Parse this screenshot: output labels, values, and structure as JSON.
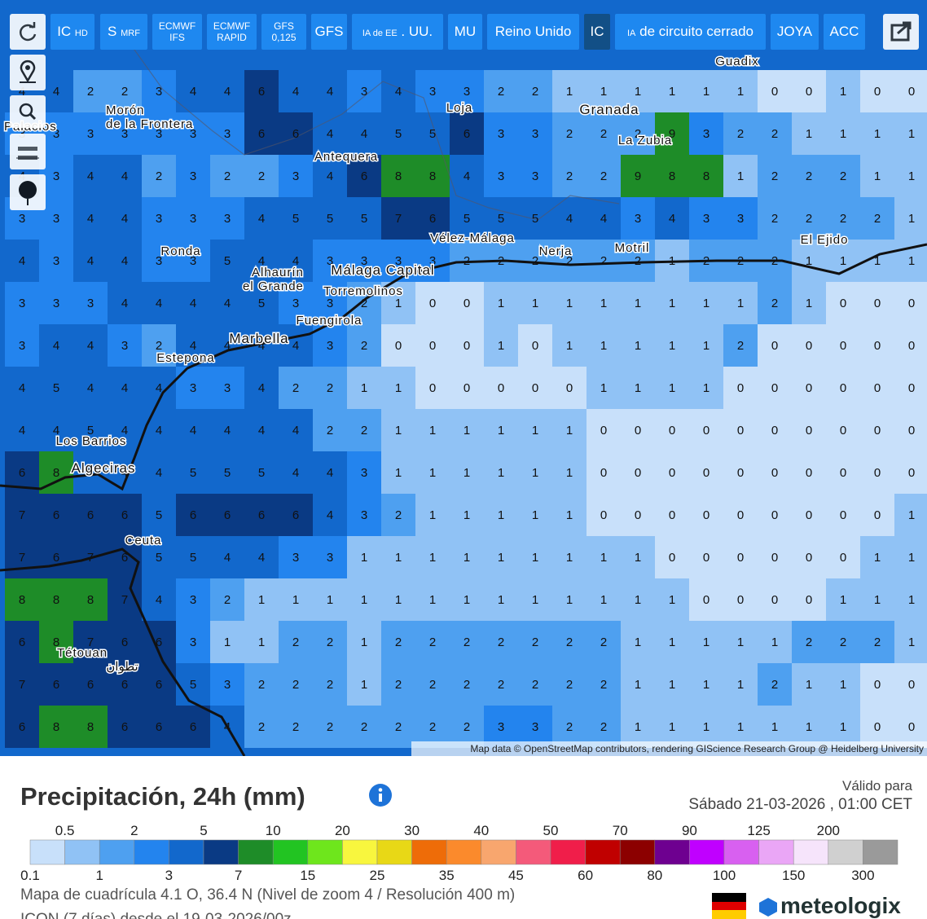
{
  "buttons": [
    {
      "label": "IC",
      "sub": "HD"
    },
    {
      "label": "S",
      "sub": "MRF"
    },
    {
      "line1": "ECMWF",
      "line2": "IFS"
    },
    {
      "line1": "ECMWF",
      "line2": "RAPID"
    },
    {
      "line1": "GFS",
      "line2": "0,125"
    },
    {
      "label": "GFS"
    },
    {
      "pre": "IA de EE",
      "label": ". UU."
    },
    {
      "label": "MU"
    },
    {
      "label": "Reino Unido"
    },
    {
      "label": "IC"
    },
    {
      "pre": "IA",
      "label": "de circuito cerrado"
    },
    {
      "label": "JOYA"
    },
    {
      "label": "ACC"
    }
  ],
  "map": {
    "attribution": "Map data © OpenStreetMap contributors, rendering GIScience Research Group @ Heidelberg University",
    "places": [
      "Guadix",
      "Granada",
      "La Zubia",
      "Loja",
      "Morón",
      "de la Frontera",
      "Palacios",
      "Antequera",
      "Ronda",
      "Vélez-Málaga",
      "Nerja",
      "Motril",
      "El Ejido",
      "Alhaurín",
      "el Grande",
      "Málaga Capital",
      "Torremolinos",
      "Fuengirola",
      "Marbella",
      "Estepona",
      "Los Barrios",
      "Algeciras",
      "Ceuta",
      "Tétouan",
      "تطوان"
    ],
    "grid": {
      "rows": [
        [
          4,
          4,
          2,
          2,
          3,
          4,
          4,
          6,
          4,
          4,
          3,
          4,
          3,
          3,
          2,
          2,
          1,
          1,
          1,
          1,
          1,
          1,
          0,
          0,
          1,
          0,
          0
        ],
        [
          3,
          3,
          3,
          3,
          3,
          3,
          3,
          6,
          6,
          4,
          4,
          5,
          5,
          6,
          3,
          3,
          2,
          2,
          2,
          9,
          3,
          2,
          2,
          1,
          1,
          1,
          1
        ],
        [
          4,
          3,
          4,
          4,
          2,
          3,
          2,
          2,
          3,
          4,
          6,
          8,
          8,
          4,
          3,
          3,
          2,
          2,
          9,
          8,
          8,
          1,
          2,
          2,
          2,
          1,
          1
        ],
        [
          3,
          3,
          4,
          4,
          3,
          3,
          3,
          4,
          5,
          5,
          5,
          7,
          6,
          5,
          5,
          5,
          4,
          4,
          3,
          4,
          3,
          3,
          2,
          2,
          2,
          2,
          1
        ],
        [
          4,
          3,
          4,
          4,
          3,
          3,
          5,
          4,
          4,
          3,
          3,
          3,
          3,
          2,
          2,
          2,
          2,
          2,
          2,
          1,
          2,
          2,
          2,
          1,
          1,
          1,
          1
        ],
        [
          3,
          3,
          3,
          4,
          4,
          4,
          4,
          5,
          3,
          3,
          2,
          1,
          0,
          0,
          1,
          1,
          1,
          1,
          1,
          1,
          1,
          1,
          2,
          1,
          0,
          0,
          0
        ],
        [
          3,
          4,
          4,
          3,
          2,
          4,
          4,
          4,
          4,
          3,
          2,
          0,
          0,
          0,
          1,
          0,
          1,
          1,
          1,
          1,
          1,
          2,
          0,
          0,
          0,
          0,
          0
        ],
        [
          4,
          5,
          4,
          4,
          4,
          3,
          3,
          4,
          2,
          2,
          1,
          1,
          0,
          0,
          0,
          0,
          0,
          1,
          1,
          1,
          1,
          0,
          0,
          0,
          0,
          0,
          0
        ],
        [
          4,
          4,
          5,
          4,
          4,
          4,
          4,
          4,
          4,
          2,
          2,
          1,
          1,
          1,
          1,
          1,
          1,
          0,
          0,
          0,
          0,
          0,
          0,
          0,
          0,
          0,
          0
        ],
        [
          6,
          8,
          5,
          4,
          4,
          5,
          5,
          5,
          4,
          4,
          3,
          1,
          1,
          1,
          1,
          1,
          1,
          0,
          0,
          0,
          0,
          0,
          0,
          0,
          0,
          0,
          0
        ],
        [
          7,
          6,
          6,
          6,
          5,
          6,
          6,
          6,
          6,
          4,
          3,
          2,
          1,
          1,
          1,
          1,
          1,
          0,
          0,
          0,
          0,
          0,
          0,
          0,
          0,
          0,
          1
        ],
        [
          7,
          6,
          7,
          6,
          5,
          5,
          4,
          4,
          3,
          3,
          1,
          1,
          1,
          1,
          1,
          1,
          1,
          1,
          1,
          0,
          0,
          0,
          0,
          0,
          0,
          1,
          1
        ],
        [
          8,
          8,
          8,
          7,
          4,
          3,
          2,
          1,
          1,
          1,
          1,
          1,
          1,
          1,
          1,
          1,
          1,
          1,
          1,
          1,
          0,
          0,
          0,
          0,
          1,
          1,
          1
        ],
        [
          6,
          8,
          7,
          6,
          6,
          3,
          1,
          1,
          2,
          2,
          1,
          2,
          2,
          2,
          2,
          2,
          2,
          2,
          1,
          1,
          1,
          1,
          1,
          2,
          2,
          2,
          1
        ],
        [
          7,
          6,
          6,
          6,
          6,
          5,
          3,
          2,
          2,
          2,
          1,
          2,
          2,
          2,
          2,
          2,
          2,
          2,
          1,
          1,
          1,
          1,
          2,
          1,
          1,
          0,
          0
        ],
        [
          6,
          8,
          8,
          6,
          6,
          6,
          4,
          2,
          2,
          2,
          2,
          2,
          2,
          2,
          3,
          3,
          2,
          2,
          1,
          1,
          1,
          1,
          1,
          1,
          1,
          0,
          0
        ]
      ]
    }
  },
  "panel": {
    "title": "Precipitación, 24h (mm)",
    "valid_label": "Válido para",
    "valid_date": "Sábado 21-03-2026 , 01:00 CET",
    "grid_info": "Mapa de cuadrícula 4.1 O, 36.4 N (Nivel de zoom 4 / Resolución 400 m)",
    "model_info": "ICON (7 días) desde el 19-03-2026/00z",
    "brand": "meteologix"
  },
  "legend": {
    "ticks": [
      0.1,
      0.5,
      1,
      2,
      3,
      5,
      7,
      10,
      15,
      20,
      25,
      30,
      35,
      40,
      45,
      50,
      60,
      70,
      80,
      90,
      100,
      125,
      150,
      200,
      300
    ],
    "colors": [
      "#c8e0fa",
      "#90c2f5",
      "#4ea0f0",
      "#2384ee",
      "#1268cc",
      "#0a3a84",
      "#1e8c28",
      "#22c422",
      "#6ee61c",
      "#f8f63e",
      "#e8d816",
      "#ee6c08",
      "#fb8a2c",
      "#f8a66e",
      "#f45a7a",
      "#f01e4a",
      "#c00000",
      "#8c0000",
      "#6e0090",
      "#c000ff",
      "#d860f0",
      "#eaa6f6",
      "#f6e4fb",
      "#d0d0d0",
      "#9a9a9a"
    ]
  }
}
